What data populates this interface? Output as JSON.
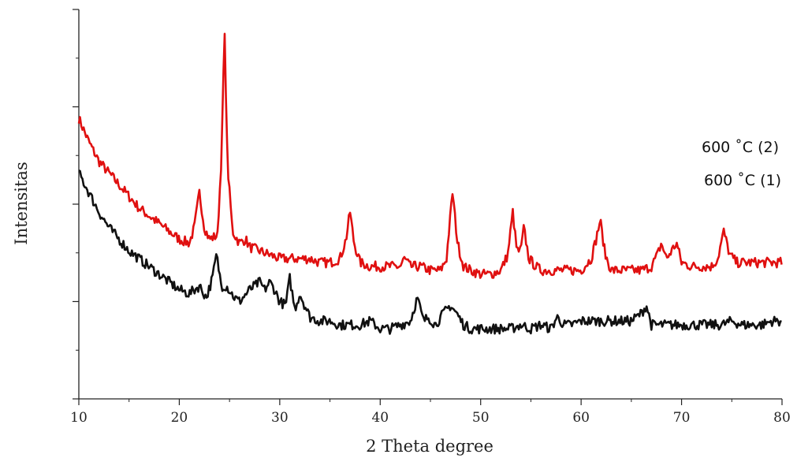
{
  "chart_data": {
    "type": "line",
    "xlabel": "2 Theta degree",
    "ylabel": "Intensitas",
    "xlim": [
      10,
      80
    ],
    "ylim": [
      0,
      100
    ],
    "x_ticks": [
      "10",
      "20",
      "30",
      "40",
      "50",
      "60",
      "70",
      "80"
    ],
    "y_tick_labels_shown": false,
    "grid": false,
    "legend": [
      "600 ˚C (2)",
      "600 ˚C (1)"
    ],
    "legend_position": "right",
    "series": [
      {
        "name": "600 ˚C (2)",
        "color": "#e01010",
        "x": [
          10,
          11,
          12,
          13,
          14,
          15,
          16,
          17,
          18,
          19,
          20,
          21,
          21.5,
          22,
          22.5,
          23,
          23.8,
          24.2,
          24.5,
          24.8,
          25.3,
          26,
          26.6,
          27,
          28,
          29,
          30,
          31,
          32,
          33,
          34,
          35,
          36,
          36.6,
          37,
          37.4,
          38,
          39,
          40,
          41,
          42,
          42.4,
          43,
          44,
          45,
          46,
          46.6,
          47.2,
          47.7,
          48.3,
          49,
          50,
          51,
          52,
          52.7,
          53.2,
          53.6,
          54,
          54.3,
          54.8,
          55.5,
          56,
          57,
          58,
          59,
          60,
          61,
          61.5,
          61.9,
          62.4,
          63,
          64,
          65,
          66,
          67,
          67.6,
          68,
          68.5,
          69,
          69.5,
          70,
          71,
          72,
          73,
          73.6,
          74.2,
          74.8,
          75.5,
          76,
          77,
          78,
          79,
          80
        ],
        "y": [
          72,
          66,
          61,
          58,
          55,
          52,
          49,
          47,
          45,
          43,
          41,
          40,
          44,
          53,
          44,
          41,
          42,
          62,
          95,
          60,
          43,
          40,
          41,
          39,
          38,
          37,
          36,
          36,
          36,
          36,
          35,
          35,
          36,
          41,
          48,
          40,
          35,
          34,
          34,
          34,
          34,
          36,
          34,
          34,
          33,
          33,
          36,
          53,
          40,
          34,
          33,
          32,
          32,
          33,
          37,
          48,
          38,
          38,
          44,
          36,
          34,
          33,
          33,
          33,
          33,
          33,
          36,
          41,
          46,
          37,
          33,
          33,
          33,
          33,
          34,
          37,
          40,
          36,
          38,
          40,
          35,
          34,
          34,
          34,
          36,
          43,
          37,
          35,
          35,
          35,
          35,
          35,
          35
        ]
      },
      {
        "name": "600 ˚C (1)",
        "color": "#111111",
        "x": [
          10,
          11,
          12,
          13,
          14,
          15,
          16,
          17,
          18,
          19,
          20,
          21,
          22,
          22.7,
          23.3,
          23.7,
          24.2,
          24.7,
          25.5,
          26,
          27,
          27.5,
          28,
          28.5,
          29,
          29.5,
          30,
          30.6,
          31,
          31.5,
          32,
          32.5,
          33,
          34,
          35,
          36,
          37,
          38,
          39,
          40,
          41,
          42,
          43,
          43.7,
          44.3,
          44.8,
          45.5,
          46.3,
          47,
          47.6,
          48.3,
          49,
          50,
          51,
          52,
          53,
          54,
          55,
          56,
          57,
          57.6,
          58.3,
          59,
          60,
          61,
          62,
          63,
          64,
          65,
          66,
          66.5,
          67,
          68,
          69,
          70,
          71,
          72,
          73,
          74,
          75,
          76,
          77,
          78,
          79,
          80
        ],
        "y": [
          58,
          53,
          48,
          44,
          41,
          38,
          36,
          34,
          32,
          30,
          28,
          27,
          29,
          26,
          31,
          37,
          29,
          29,
          26,
          25,
          28,
          29,
          30,
          28,
          30,
          28,
          25,
          24,
          31,
          23,
          27,
          24,
          21,
          20,
          20,
          19,
          19,
          19,
          20,
          18,
          18,
          19,
          20,
          26,
          20,
          21,
          19,
          22,
          24,
          22,
          19,
          18,
          18,
          18,
          18,
          18,
          19,
          18,
          19,
          18,
          21,
          19,
          19,
          20,
          20,
          20,
          20,
          20,
          20,
          22,
          24,
          19,
          19,
          19,
          19,
          19,
          19,
          19,
          19,
          20,
          19,
          19,
          19,
          20,
          20
        ]
      }
    ]
  }
}
